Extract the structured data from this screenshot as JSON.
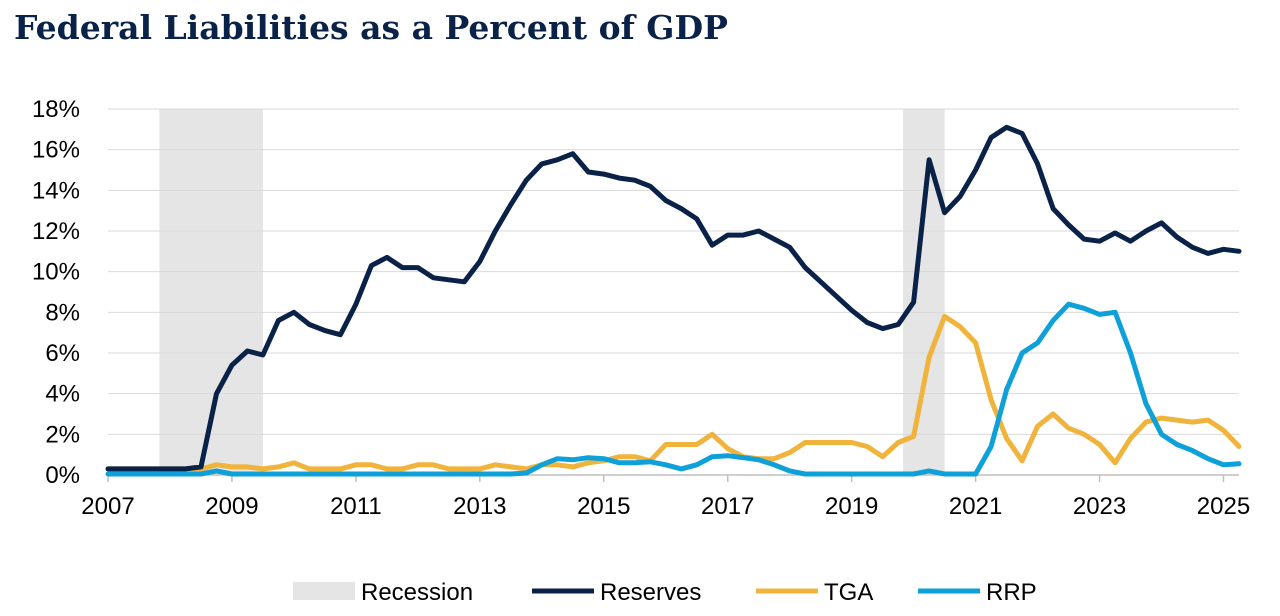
{
  "chart_data": {
    "type": "line",
    "title": "Federal Liabilities as a Percent of GDP",
    "xlabel": "",
    "ylabel": "",
    "xlim": [
      2007.0,
      2025.25
    ],
    "ylim": [
      0,
      18
    ],
    "grid": true,
    "legend_position": "bottom",
    "x_ticks": [
      2007,
      2009,
      2011,
      2013,
      2015,
      2017,
      2019,
      2021,
      2023,
      2025
    ],
    "x_tick_labels": [
      "2007",
      "2009",
      "2011",
      "2013",
      "2015",
      "2017",
      "2019",
      "2021",
      "2023",
      "2025"
    ],
    "y_ticks": [
      0,
      2,
      4,
      6,
      8,
      10,
      12,
      14,
      16,
      18
    ],
    "y_tick_labels": [
      "0%",
      "2%",
      "4%",
      "6%",
      "8%",
      "10%",
      "12%",
      "14%",
      "16%",
      "18%"
    ],
    "recessions": [
      {
        "start": 2007.83,
        "end": 2009.5
      },
      {
        "start": 2019.83,
        "end": 2020.5
      }
    ],
    "recession_label": "Recession",
    "recession_color": "#e5e5e5",
    "series": [
      {
        "name": "Reserves",
        "color": "#0a2248",
        "x": [
          2007.0,
          2007.25,
          2007.5,
          2007.75,
          2008.0,
          2008.25,
          2008.5,
          2008.75,
          2009.0,
          2009.25,
          2009.5,
          2009.75,
          2010.0,
          2010.25,
          2010.5,
          2010.75,
          2011.0,
          2011.25,
          2011.5,
          2011.75,
          2012.0,
          2012.25,
          2012.5,
          2012.75,
          2013.0,
          2013.25,
          2013.5,
          2013.75,
          2014.0,
          2014.25,
          2014.5,
          2014.75,
          2015.0,
          2015.25,
          2015.5,
          2015.75,
          2016.0,
          2016.25,
          2016.5,
          2016.75,
          2017.0,
          2017.25,
          2017.5,
          2017.75,
          2018.0,
          2018.25,
          2018.5,
          2018.75,
          2019.0,
          2019.25,
          2019.5,
          2019.75,
          2020.0,
          2020.25,
          2020.5,
          2020.75,
          2021.0,
          2021.25,
          2021.5,
          2021.75,
          2022.0,
          2022.25,
          2022.5,
          2022.75,
          2023.0,
          2023.25,
          2023.5,
          2023.75,
          2024.0,
          2024.25,
          2024.5,
          2024.75,
          2025.0,
          2025.25
        ],
        "values": [
          0.3,
          0.3,
          0.3,
          0.3,
          0.3,
          0.3,
          0.4,
          4.0,
          5.4,
          6.1,
          5.9,
          7.6,
          8.0,
          7.4,
          7.1,
          6.9,
          8.4,
          10.3,
          10.7,
          10.2,
          10.2,
          9.7,
          9.6,
          9.5,
          10.5,
          12.0,
          13.3,
          14.5,
          15.3,
          15.5,
          15.8,
          14.9,
          14.8,
          14.6,
          14.5,
          14.2,
          13.5,
          13.1,
          12.6,
          11.3,
          11.8,
          11.8,
          12.0,
          11.6,
          11.2,
          10.2,
          9.5,
          8.8,
          8.1,
          7.5,
          7.2,
          7.4,
          8.5,
          15.5,
          12.9,
          13.7,
          15.0,
          16.6,
          17.1,
          16.8,
          15.3,
          13.1,
          12.3,
          11.6,
          11.5,
          11.9,
          11.5,
          12.0,
          12.4,
          11.7,
          11.2,
          10.9,
          11.1,
          11.0
        ]
      },
      {
        "name": "TGA",
        "color": "#f0b43c",
        "x": [
          2007.0,
          2007.25,
          2007.5,
          2007.75,
          2008.0,
          2008.25,
          2008.5,
          2008.75,
          2009.0,
          2009.25,
          2009.5,
          2009.75,
          2010.0,
          2010.25,
          2010.5,
          2010.75,
          2011.0,
          2011.25,
          2011.5,
          2011.75,
          2012.0,
          2012.25,
          2012.5,
          2012.75,
          2013.0,
          2013.25,
          2013.5,
          2013.75,
          2014.0,
          2014.25,
          2014.5,
          2014.75,
          2015.0,
          2015.25,
          2015.5,
          2015.75,
          2016.0,
          2016.25,
          2016.5,
          2016.75,
          2017.0,
          2017.25,
          2017.5,
          2017.75,
          2018.0,
          2018.25,
          2018.5,
          2018.75,
          2019.0,
          2019.25,
          2019.5,
          2019.75,
          2020.0,
          2020.25,
          2020.5,
          2020.75,
          2021.0,
          2021.25,
          2021.5,
          2021.75,
          2022.0,
          2022.25,
          2022.5,
          2022.75,
          2023.0,
          2023.25,
          2023.5,
          2023.75,
          2024.0,
          2024.25,
          2024.5,
          2024.75,
          2025.0,
          2025.25
        ],
        "values": [
          0.3,
          0.3,
          0.3,
          0.3,
          0.3,
          0.3,
          0.3,
          0.5,
          0.4,
          0.4,
          0.3,
          0.4,
          0.6,
          0.3,
          0.3,
          0.3,
          0.5,
          0.5,
          0.3,
          0.3,
          0.5,
          0.5,
          0.3,
          0.3,
          0.3,
          0.5,
          0.4,
          0.3,
          0.5,
          0.5,
          0.4,
          0.6,
          0.7,
          0.9,
          0.9,
          0.7,
          1.5,
          1.5,
          1.5,
          2.0,
          1.3,
          0.9,
          0.8,
          0.8,
          1.1,
          1.6,
          1.6,
          1.6,
          1.6,
          1.4,
          0.9,
          1.6,
          1.9,
          5.8,
          7.8,
          7.3,
          6.5,
          3.7,
          1.8,
          0.7,
          2.4,
          3.0,
          2.3,
          2.0,
          1.5,
          0.6,
          1.8,
          2.6,
          2.8,
          2.7,
          2.6,
          2.7,
          2.2,
          1.4
        ]
      },
      {
        "name": "RRP",
        "color": "#0ea0d9",
        "x": [
          2007.0,
          2007.25,
          2007.5,
          2007.75,
          2008.0,
          2008.25,
          2008.5,
          2008.75,
          2009.0,
          2009.25,
          2009.5,
          2009.75,
          2010.0,
          2010.25,
          2010.5,
          2010.75,
          2011.0,
          2011.25,
          2011.5,
          2011.75,
          2012.0,
          2012.25,
          2012.5,
          2012.75,
          2013.0,
          2013.25,
          2013.5,
          2013.75,
          2014.0,
          2014.25,
          2014.5,
          2014.75,
          2015.0,
          2015.25,
          2015.5,
          2015.75,
          2016.0,
          2016.25,
          2016.5,
          2016.75,
          2017.0,
          2017.25,
          2017.5,
          2017.75,
          2018.0,
          2018.25,
          2018.5,
          2018.75,
          2019.0,
          2019.25,
          2019.5,
          2019.75,
          2020.0,
          2020.25,
          2020.5,
          2020.75,
          2021.0,
          2021.25,
          2021.5,
          2021.75,
          2022.0,
          2022.25,
          2022.5,
          2022.75,
          2023.0,
          2023.25,
          2023.5,
          2023.75,
          2024.0,
          2024.25,
          2024.5,
          2024.75,
          2025.0,
          2025.25
        ],
        "values": [
          0.05,
          0.05,
          0.05,
          0.05,
          0.05,
          0.05,
          0.05,
          0.2,
          0.05,
          0.05,
          0.05,
          0.05,
          0.05,
          0.05,
          0.05,
          0.05,
          0.05,
          0.05,
          0.05,
          0.05,
          0.05,
          0.05,
          0.05,
          0.05,
          0.05,
          0.05,
          0.05,
          0.1,
          0.5,
          0.8,
          0.75,
          0.85,
          0.8,
          0.6,
          0.6,
          0.65,
          0.5,
          0.3,
          0.5,
          0.9,
          0.95,
          0.85,
          0.75,
          0.5,
          0.2,
          0.05,
          0.05,
          0.05,
          0.05,
          0.05,
          0.05,
          0.05,
          0.05,
          0.2,
          0.05,
          0.05,
          0.05,
          1.4,
          4.2,
          6.0,
          6.5,
          7.6,
          8.4,
          8.2,
          7.9,
          8.0,
          6.0,
          3.5,
          2.0,
          1.5,
          1.2,
          0.8,
          0.5,
          0.55
        ]
      }
    ]
  }
}
